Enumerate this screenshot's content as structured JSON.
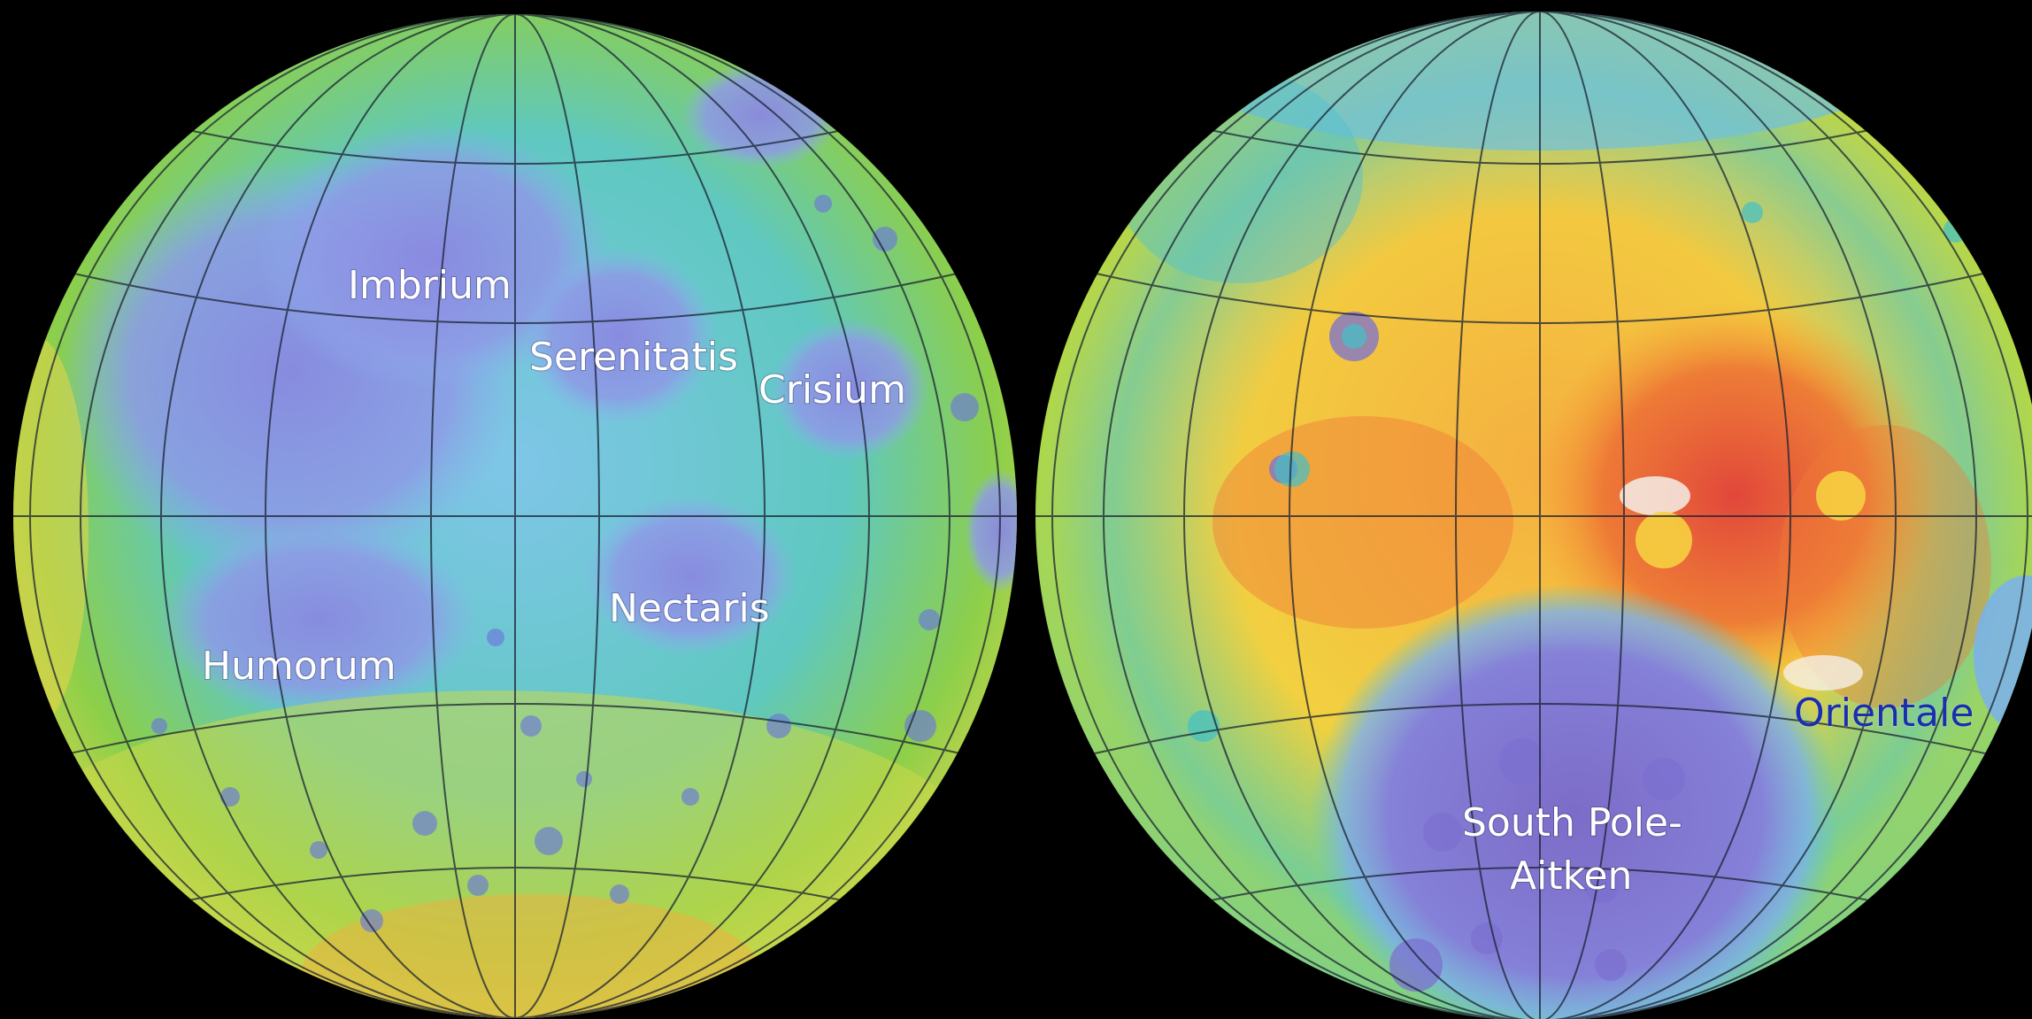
{
  "nearside": {
    "labels": {
      "imbrium": "Imbrium",
      "serenitatis": "Serenitatis",
      "crisium": "Crisium",
      "nectaris": "Nectaris",
      "humorum": "Humorum"
    }
  },
  "farside": {
    "labels": {
      "spa_line1": "South Pole-",
      "spa_line2": "Aitken",
      "orientale": "Orientale"
    }
  },
  "colors": {
    "background": "#000000",
    "lowland_purple": "#8a88e0",
    "low_blue": "#7fb8f0",
    "mid_cyan": "#40c8c8",
    "mid_green": "#8ccf4a",
    "high_yellow": "#f2e040",
    "higher_orange": "#f59a30",
    "highest_red": "#e0403a",
    "orientale_label": "#1a2fb0"
  }
}
